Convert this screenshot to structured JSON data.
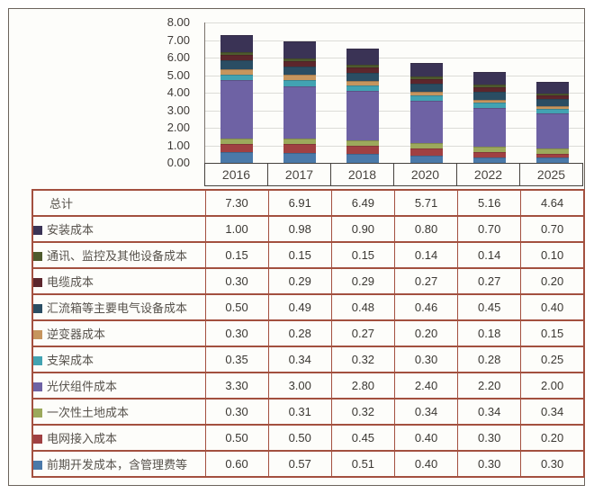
{
  "chart_data": {
    "type": "bar",
    "stacked": true,
    "title": "",
    "categories": [
      "2016",
      "2017",
      "2018",
      "2020",
      "2022",
      "2025"
    ],
    "series": [
      {
        "name": "安装成本",
        "color": "#3a3355",
        "values": [
          1.0,
          0.98,
          0.9,
          0.8,
          0.7,
          0.7
        ]
      },
      {
        "name": "通讯、监控及其他设备成本",
        "color": "#4e5a2e",
        "values": [
          0.15,
          0.15,
          0.15,
          0.14,
          0.14,
          0.1
        ]
      },
      {
        "name": "电缆成本",
        "color": "#5c262c",
        "values": [
          0.3,
          0.29,
          0.29,
          0.27,
          0.27,
          0.2
        ]
      },
      {
        "name": "汇流箱等主要电气设备成本",
        "color": "#2a4d63",
        "values": [
          0.5,
          0.49,
          0.48,
          0.46,
          0.45,
          0.4
        ]
      },
      {
        "name": "逆变器成本",
        "color": "#c6955e",
        "values": [
          0.3,
          0.28,
          0.27,
          0.2,
          0.18,
          0.15
        ]
      },
      {
        "name": "支架成本",
        "color": "#42a3b2",
        "values": [
          0.35,
          0.34,
          0.32,
          0.3,
          0.28,
          0.25
        ]
      },
      {
        "name": "光伏组件成本",
        "color": "#6e62a4",
        "values": [
          3.3,
          3.0,
          2.8,
          2.4,
          2.2,
          2.0
        ]
      },
      {
        "name": "一次性土地成本",
        "color": "#9ca95c",
        "values": [
          0.3,
          0.31,
          0.32,
          0.34,
          0.34,
          0.34
        ]
      },
      {
        "name": "电网接入成本",
        "color": "#a04042",
        "values": [
          0.5,
          0.5,
          0.45,
          0.4,
          0.3,
          0.2
        ]
      },
      {
        "name": "前期开发成本，含管理费等",
        "color": "#4a79a9",
        "values": [
          0.6,
          0.57,
          0.51,
          0.4,
          0.3,
          0.3
        ]
      }
    ],
    "stack_order": "last-series-at-bottom",
    "total_label": "总计",
    "totals": [
      7.3,
      6.91,
      6.49,
      5.71,
      5.16,
      4.64
    ],
    "ylim": [
      0,
      8
    ],
    "y_ticks": [
      "8.00",
      "7.00",
      "6.00",
      "5.00",
      "4.00",
      "3.00",
      "2.00",
      "1.00",
      "0.00"
    ],
    "grid": true,
    "legend_position": "in-table-left-column"
  },
  "table": {
    "value_decimals": 2
  },
  "colors": {
    "table_border": "#a3503f",
    "axis_line": "#45413d",
    "gridline": "#dcdcd7",
    "tick_text": "#3e3a36",
    "label_text": "#57524c",
    "value_text": "#3b3833",
    "frame_border": "#6b635c",
    "background": "#fdfdfa"
  }
}
